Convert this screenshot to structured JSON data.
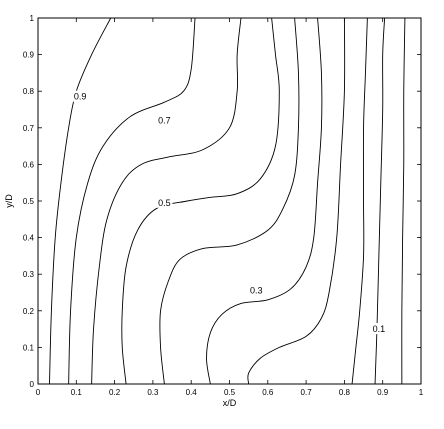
{
  "chart_data": {
    "type": "contour",
    "title": "",
    "xlabel": "x/D",
    "ylabel": "y/D",
    "xlim": [
      0,
      1
    ],
    "ylim": [
      0,
      1
    ],
    "xticks": [
      {
        "value": 0,
        "label": "0"
      },
      {
        "value": 0.1,
        "label": "0.1"
      },
      {
        "value": 0.2,
        "label": "0.2"
      },
      {
        "value": 0.3,
        "label": "0.3"
      },
      {
        "value": 0.4,
        "label": "0.4"
      },
      {
        "value": 0.5,
        "label": "0.5"
      },
      {
        "value": 0.6,
        "label": "0.6"
      },
      {
        "value": 0.7,
        "label": "0.7"
      },
      {
        "value": 0.8,
        "label": "0.8"
      },
      {
        "value": 0.9,
        "label": "0.9"
      },
      {
        "value": 1,
        "label": "1"
      }
    ],
    "yticks": [
      {
        "value": 0,
        "label": "0"
      },
      {
        "value": 0.1,
        "label": "0.1"
      },
      {
        "value": 0.2,
        "label": "0.2"
      },
      {
        "value": 0.3,
        "label": "0.3"
      },
      {
        "value": 0.4,
        "label": "0.4"
      },
      {
        "value": 0.5,
        "label": "0.5"
      },
      {
        "value": 0.6,
        "label": "0.6"
      },
      {
        "value": 0.7,
        "label": "0.7"
      },
      {
        "value": 0.8,
        "label": "0.8"
      },
      {
        "value": 0.9,
        "label": "0.9"
      },
      {
        "value": 1,
        "label": "1"
      }
    ],
    "grid": false,
    "legend": false,
    "series": [
      {
        "points": [
          [
            0.03,
            0
          ],
          [
            0.035,
            0.2
          ],
          [
            0.045,
            0.4
          ],
          [
            0.06,
            0.55
          ],
          [
            0.08,
            0.7
          ],
          [
            0.1,
            0.8
          ],
          [
            0.14,
            0.9
          ],
          [
            0.19,
            1
          ]
        ]
      },
      {
        "points": [
          [
            0.08,
            0
          ],
          [
            0.085,
            0.2
          ],
          [
            0.1,
            0.4
          ],
          [
            0.13,
            0.55
          ],
          [
            0.17,
            0.65
          ],
          [
            0.24,
            0.73
          ],
          [
            0.33,
            0.77
          ],
          [
            0.38,
            0.8
          ],
          [
            0.4,
            0.86
          ],
          [
            0.41,
            1
          ]
        ]
      },
      {
        "points": [
          [
            0.14,
            0
          ],
          [
            0.145,
            0.15
          ],
          [
            0.16,
            0.32
          ],
          [
            0.18,
            0.45
          ],
          [
            0.22,
            0.55
          ],
          [
            0.27,
            0.6
          ],
          [
            0.34,
            0.62
          ],
          [
            0.43,
            0.64
          ],
          [
            0.5,
            0.7
          ],
          [
            0.52,
            0.8
          ],
          [
            0.52,
            0.9
          ],
          [
            0.53,
            1
          ]
        ]
      },
      {
        "points": [
          [
            0.23,
            0
          ],
          [
            0.22,
            0.1
          ],
          [
            0.22,
            0.2
          ],
          [
            0.23,
            0.32
          ],
          [
            0.26,
            0.42
          ],
          [
            0.31,
            0.48
          ],
          [
            0.39,
            0.5
          ],
          [
            0.45,
            0.51
          ],
          [
            0.52,
            0.52
          ],
          [
            0.58,
            0.56
          ],
          [
            0.62,
            0.65
          ],
          [
            0.63,
            0.8
          ],
          [
            0.62,
            0.9
          ],
          [
            0.61,
            1
          ]
        ]
      },
      {
        "points": [
          [
            0.33,
            0
          ],
          [
            0.32,
            0.1
          ],
          [
            0.32,
            0.2
          ],
          [
            0.34,
            0.28
          ],
          [
            0.37,
            0.34
          ],
          [
            0.43,
            0.37
          ],
          [
            0.52,
            0.38
          ],
          [
            0.6,
            0.42
          ],
          [
            0.64,
            0.48
          ],
          [
            0.67,
            0.57
          ],
          [
            0.68,
            0.7
          ],
          [
            0.68,
            0.85
          ],
          [
            0.67,
            1
          ]
        ]
      },
      {
        "points": [
          [
            0.45,
            0
          ],
          [
            0.44,
            0.07
          ],
          [
            0.45,
            0.14
          ],
          [
            0.48,
            0.19
          ],
          [
            0.53,
            0.22
          ],
          [
            0.6,
            0.23
          ],
          [
            0.66,
            0.26
          ],
          [
            0.7,
            0.32
          ],
          [
            0.72,
            0.4
          ],
          [
            0.73,
            0.55
          ],
          [
            0.74,
            0.7
          ],
          [
            0.74,
            0.85
          ],
          [
            0.73,
            1
          ]
        ]
      },
      {
        "points": [
          [
            0.55,
            0
          ],
          [
            0.55,
            0.03
          ],
          [
            0.58,
            0.07
          ],
          [
            0.63,
            0.1
          ],
          [
            0.7,
            0.13
          ],
          [
            0.74,
            0.18
          ],
          [
            0.76,
            0.25
          ],
          [
            0.78,
            0.4
          ],
          [
            0.79,
            0.6
          ],
          [
            0.8,
            0.8
          ],
          [
            0.8,
            1
          ]
        ]
      },
      {
        "points": [
          [
            0.82,
            0
          ],
          [
            0.825,
            0.05
          ],
          [
            0.83,
            0.1
          ],
          [
            0.84,
            0.2
          ],
          [
            0.85,
            0.35
          ],
          [
            0.85,
            0.5
          ],
          [
            0.85,
            0.7
          ],
          [
            0.855,
            0.85
          ],
          [
            0.86,
            1
          ]
        ]
      },
      {
        "points": [
          [
            0.88,
            0
          ],
          [
            0.885,
            0.15
          ],
          [
            0.89,
            0.35
          ],
          [
            0.895,
            0.55
          ],
          [
            0.9,
            0.75
          ],
          [
            0.9,
            0.9
          ],
          [
            0.905,
            1
          ]
        ]
      },
      {
        "points": [
          [
            0.95,
            0
          ],
          [
            0.95,
            0.2
          ],
          [
            0.952,
            0.4
          ],
          [
            0.955,
            0.6
          ],
          [
            0.955,
            0.8
          ],
          [
            0.958,
            1
          ]
        ]
      }
    ],
    "contour_labels": [
      {
        "text": "0.9",
        "x": 0.11,
        "y": 0.785
      },
      {
        "text": "0.7",
        "x": 0.33,
        "y": 0.72
      },
      {
        "text": "0.5",
        "x": 0.33,
        "y": 0.495
      },
      {
        "text": "0.3",
        "x": 0.57,
        "y": 0.255
      },
      {
        "text": "0.1",
        "x": 0.89,
        "y": 0.15
      }
    ]
  }
}
